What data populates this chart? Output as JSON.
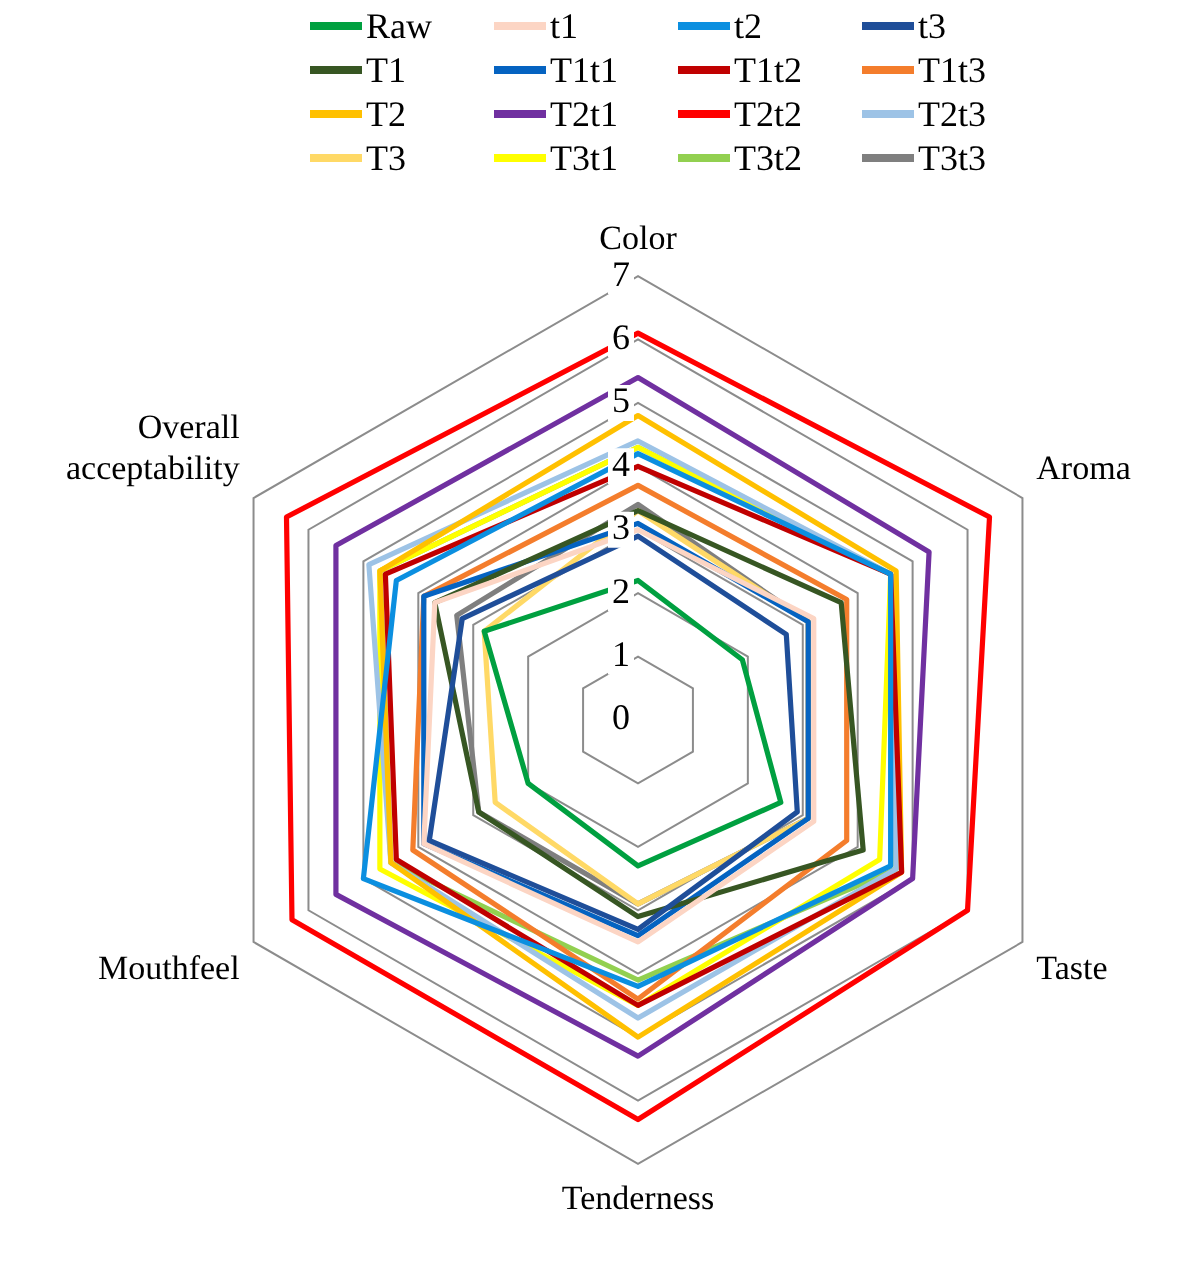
{
  "chart_data": {
    "type": "radar",
    "categories": [
      "Color",
      "Aroma",
      "Taste",
      "Tenderness",
      "Mouthfeel",
      "Overall acceptability"
    ],
    "ylim": [
      0,
      7
    ],
    "yticks": [
      0,
      1,
      2,
      3,
      4,
      5,
      6,
      7
    ],
    "grid": true,
    "legend": "top",
    "marker": "none",
    "line_style": "solid",
    "series": [
      {
        "name": "Raw",
        "color": "#00a040",
        "values": [
          2.2,
          1.9,
          2.6,
          2.3,
          2.0,
          2.8
        ]
      },
      {
        "name": "t1",
        "color": "#fcd5c4",
        "values": [
          3.0,
          3.2,
          3.2,
          3.5,
          3.9,
          3.7
        ]
      },
      {
        "name": "t2",
        "color": "#0b8fe0",
        "values": [
          4.2,
          4.6,
          4.6,
          4.2,
          5.0,
          4.4
        ]
      },
      {
        "name": "t3",
        "color": "#1f4e99",
        "values": [
          2.9,
          2.7,
          2.9,
          3.3,
          3.8,
          3.2
        ]
      },
      {
        "name": "T1",
        "color": "#375623",
        "values": [
          3.3,
          3.7,
          4.1,
          3.1,
          2.9,
          3.7
        ]
      },
      {
        "name": "T1t1",
        "color": "#0563c1",
        "values": [
          3.1,
          3.1,
          3.1,
          3.4,
          3.9,
          3.9
        ]
      },
      {
        "name": "T1t2",
        "color": "#c00000",
        "values": [
          4.0,
          4.6,
          4.8,
          4.5,
          4.4,
          4.6
        ]
      },
      {
        "name": "T1t3",
        "color": "#f47d2c",
        "values": [
          3.7,
          3.8,
          3.8,
          4.4,
          4.1,
          3.9
        ]
      },
      {
        "name": "T2",
        "color": "#ffc000",
        "values": [
          4.8,
          4.7,
          4.8,
          5.0,
          4.5,
          4.7
        ]
      },
      {
        "name": "T2t1",
        "color": "#7030a0",
        "values": [
          5.4,
          5.3,
          5.0,
          5.3,
          5.5,
          5.5
        ]
      },
      {
        "name": "T2t2",
        "color": "#ff0000",
        "values": [
          6.1,
          6.4,
          6.0,
          6.3,
          6.3,
          6.4
        ]
      },
      {
        "name": "T2t3",
        "color": "#9dc3e6",
        "values": [
          4.4,
          4.6,
          4.7,
          4.7,
          4.5,
          4.9
        ]
      },
      {
        "name": "T3",
        "color": "#ffd966",
        "values": [
          3.3,
          3.1,
          3.1,
          2.9,
          2.6,
          2.8
        ]
      },
      {
        "name": "T3t1",
        "color": "#ffff00",
        "values": [
          4.3,
          4.6,
          4.4,
          4.5,
          4.7,
          4.7
        ]
      },
      {
        "name": "T3t2",
        "color": "#92d050",
        "values": [
          4.3,
          4.6,
          4.7,
          4.1,
          4.5,
          4.7
        ]
      },
      {
        "name": "T3t3",
        "color": "#7f7f7f",
        "values": [
          3.4,
          3.1,
          3.1,
          2.9,
          2.9,
          3.3
        ]
      }
    ]
  }
}
